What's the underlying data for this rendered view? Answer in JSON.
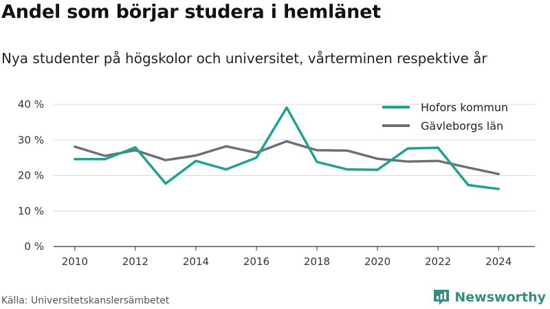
{
  "title": "Andel som börjar studera i hemlänet",
  "subtitle": "Nya studenter på högskolor och universitet, vårterminen respektive år",
  "source": "Källa: Universitetskanslersämbetet",
  "brand": "Newsworthy",
  "colors": {
    "brand": "#2f8f83",
    "grid": "#d9d9d9",
    "axis": "#333333"
  },
  "chart_data": {
    "type": "line",
    "x": [
      2010,
      2011,
      2012,
      2013,
      2014,
      2015,
      2016,
      2017,
      2018,
      2019,
      2020,
      2021,
      2022,
      2023,
      2024
    ],
    "x_ticks": [
      2010,
      2012,
      2014,
      2016,
      2018,
      2020,
      2022,
      2024
    ],
    "x_tick_labels": [
      "2010",
      "2012",
      "2014",
      "2016",
      "2018",
      "2020",
      "2022",
      "2024"
    ],
    "y_ticks": [
      0,
      10,
      20,
      30,
      40
    ],
    "y_tick_labels": [
      "0 %",
      "10 %",
      "20 %",
      "30 %",
      "40 %"
    ],
    "ylim": [
      0,
      40
    ],
    "xlim": [
      2009.3,
      2025.2
    ],
    "grid": true,
    "legend_position": "top-right",
    "series": [
      {
        "name": "Hofors kommun",
        "color": "#1aa294",
        "values": [
          24.6,
          24.6,
          27.9,
          17.7,
          24.1,
          21.7,
          25.0,
          39.1,
          23.8,
          21.7,
          21.6,
          27.6,
          27.8,
          17.3,
          16.2
        ]
      },
      {
        "name": "Gävleborgs län",
        "color": "#6e6e78",
        "values": [
          28.1,
          25.5,
          27.1,
          24.3,
          25.6,
          28.2,
          26.4,
          29.6,
          27.1,
          27.0,
          24.7,
          23.9,
          24.1,
          22.2,
          20.4
        ]
      }
    ]
  }
}
